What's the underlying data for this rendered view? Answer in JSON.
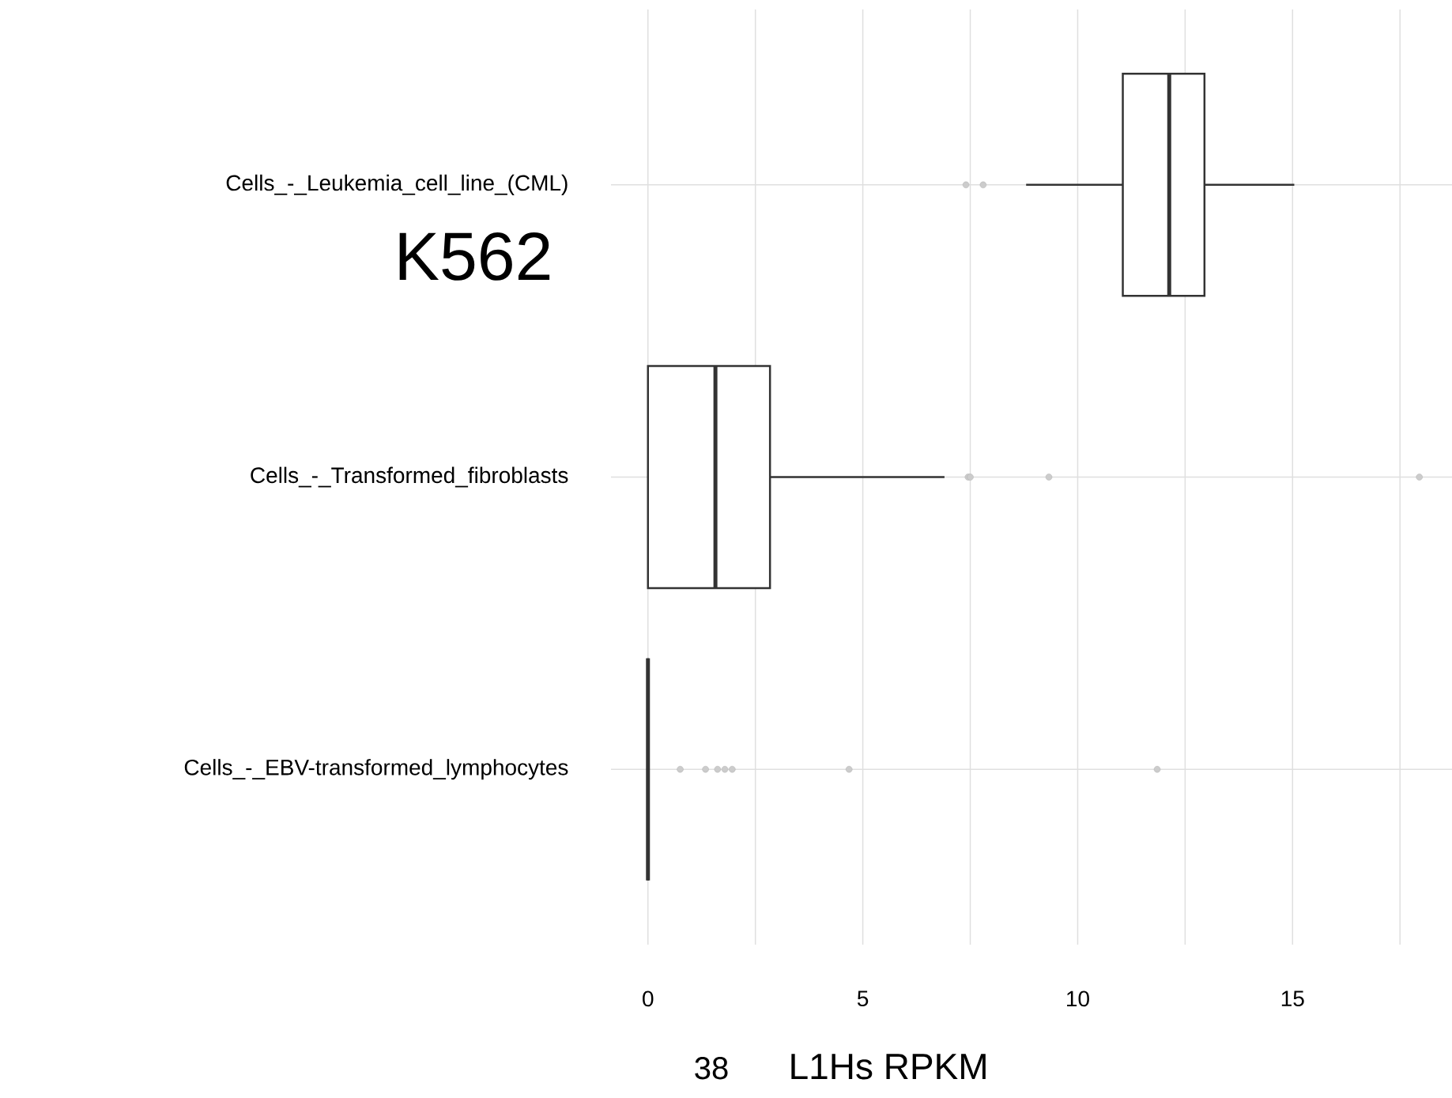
{
  "chart_data": {
    "type": "box",
    "orientation": "horizontal",
    "categories": [
      "Cells_-_Leukemia_cell_line_(CML)",
      "Cells_-_Transformed_fibroblasts",
      "Cells_-_EBV-transformed_lymphocytes"
    ],
    "boxes": [
      {
        "low": 8.8,
        "q1": 11.05,
        "median": 12.13,
        "q3": 12.95,
        "high": 15.04,
        "outliers": [
          7.4,
          7.8
        ]
      },
      {
        "low": 0,
        "q1": 0,
        "median": 1.57,
        "q3": 2.84,
        "high": 6.9,
        "outliers": [
          7.45,
          7.5,
          9.33,
          17.95
        ]
      },
      {
        "low": 0,
        "q1": 0,
        "median": 0,
        "q3": 0,
        "high": 0,
        "outliers": [
          0.75,
          1.34,
          1.62,
          1.79,
          1.96,
          4.68,
          11.85
        ]
      }
    ],
    "xlabel": "L1Hs RPKM",
    "xlim": [
      -0.86,
      18.71
    ],
    "xticks": [
      0,
      {
        "value": 2.5,
        "label": null
      },
      5,
      {
        "value": 7.5,
        "label": null
      },
      10,
      {
        "value": 12.5,
        "label": null
      },
      15,
      {
        "value": 17.5,
        "label": null
      }
    ],
    "grid": true,
    "annotations": [
      "K562",
      "38"
    ]
  }
}
